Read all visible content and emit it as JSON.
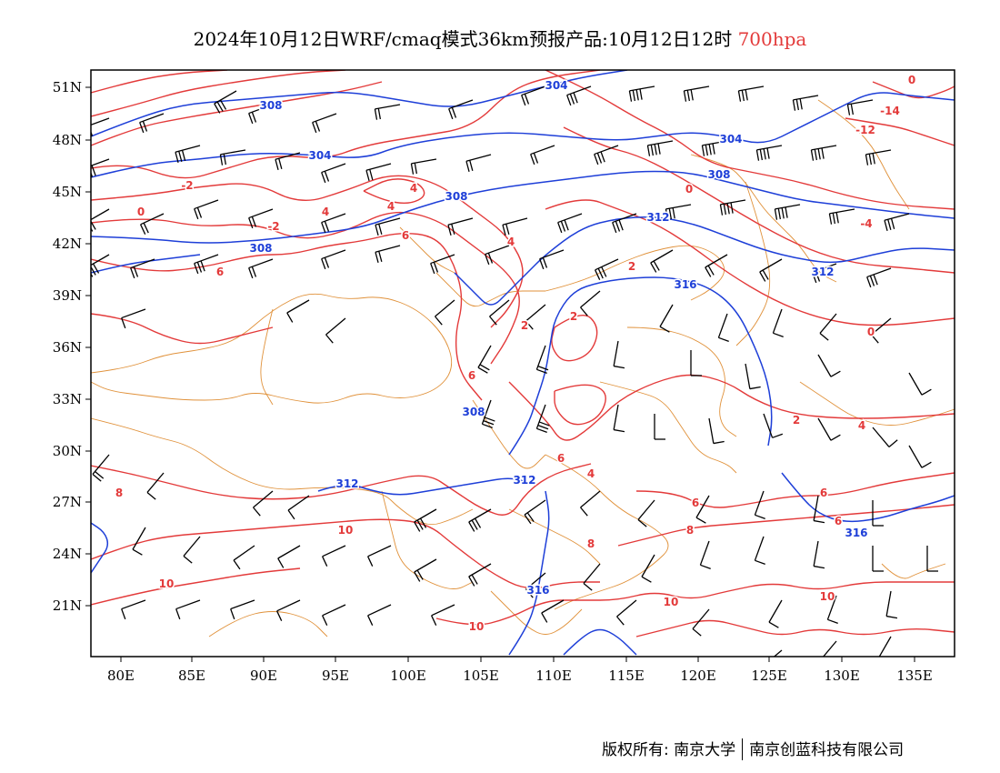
{
  "title": {
    "main": "2024年10月12日WRF/cmaq模式36km预报产品:10月12日12时",
    "level": "700hpa"
  },
  "colors": {
    "temperature_contour": "#e33a3a",
    "geopotential_contour": "#1e3fd8",
    "boundaries": "#e0913a",
    "wind_barbs": "#000000"
  },
  "map": {
    "lon_ticks": [
      "80E",
      "85E",
      "90E",
      "95E",
      "100E",
      "105E",
      "110E",
      "115E",
      "120E",
      "125E",
      "130E",
      "135E"
    ],
    "lat_ticks": [
      "51N",
      "48N",
      "45N",
      "42N",
      "39N",
      "36N",
      "33N",
      "30N",
      "27N",
      "24N",
      "21N"
    ],
    "geopotential_labels": [
      "304",
      "308",
      "312",
      "316"
    ],
    "temperature_labels": [
      "-14",
      "-12",
      "-4",
      "-2",
      "0",
      "2",
      "4",
      "6",
      "8",
      "10"
    ]
  },
  "footer": {
    "copyright": "版权所有: 南京大学",
    "company": "南京创蓝科技有限公司"
  }
}
